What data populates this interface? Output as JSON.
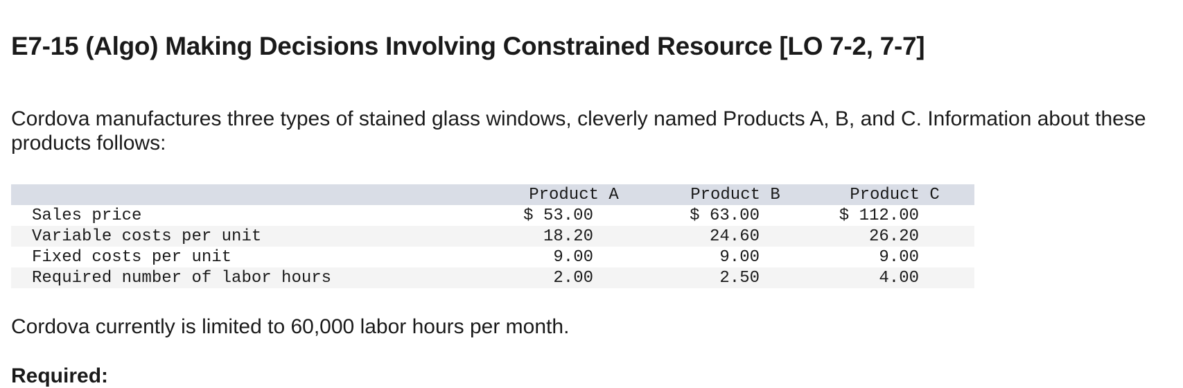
{
  "header": {
    "title": "E7-15 (Algo) Making Decisions Involving Constrained Resource [LO 7-2, 7-7]"
  },
  "intro": "Cordova manufactures three types of stained glass windows, cleverly named Products A, B, and C. Information about these products follows:",
  "table": {
    "columns": [
      "Product A",
      "Product B",
      "Product C"
    ],
    "rows": [
      [
        "Sales price",
        "$ 53.00",
        "$ 63.00",
        "$ 112.00"
      ],
      [
        "Variable costs per unit",
        "18.20",
        "24.60",
        "26.20"
      ],
      [
        "Fixed costs per unit",
        "9.00",
        "9.00",
        "9.00"
      ],
      [
        "Required number of labor hours",
        "2.00",
        "2.50",
        "4.00"
      ]
    ]
  },
  "note": "Cordova currently is limited to 60,000 labor hours per month.",
  "required": "Required:"
}
